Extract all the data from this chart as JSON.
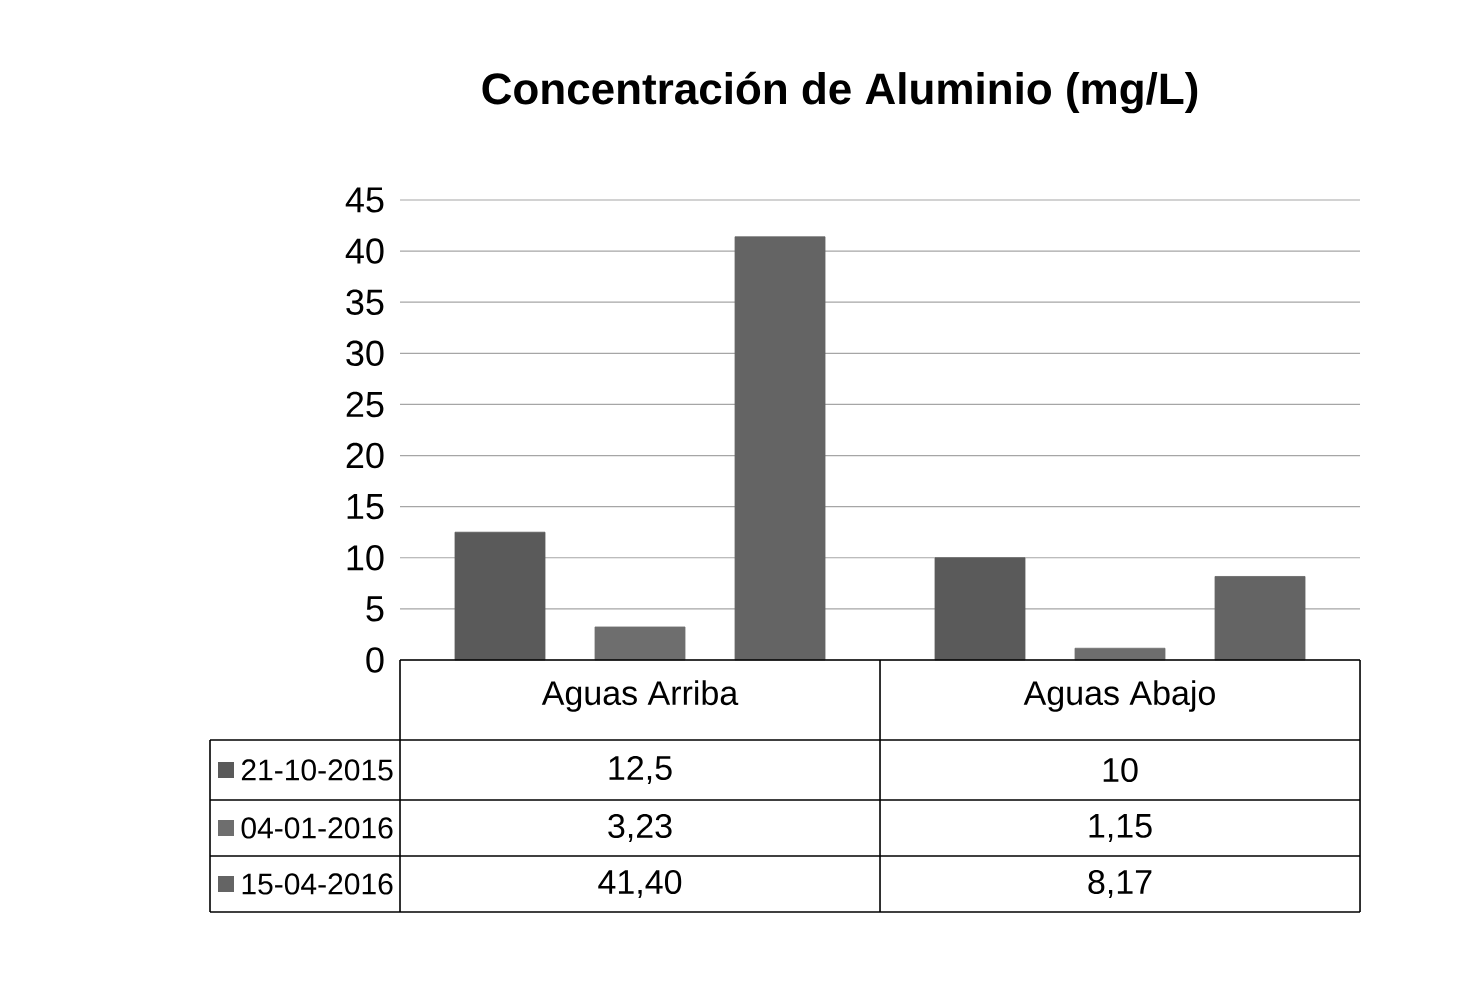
{
  "chart_data": {
    "type": "bar",
    "title": "Concentración de Aluminio (mg/L)",
    "categories": [
      "Aguas Arriba",
      "Aguas Abajo"
    ],
    "series": [
      {
        "name": "21-10-2015",
        "color": "#5a5a5a",
        "values": [
          12.5,
          10
        ],
        "value_labels": [
          "12,5",
          "10"
        ]
      },
      {
        "name": "04-01-2016",
        "color": "#6e6e6e",
        "values": [
          3.23,
          1.15
        ],
        "value_labels": [
          "3,23",
          "1,15"
        ]
      },
      {
        "name": "15-04-2016",
        "color": "#646464",
        "values": [
          41.4,
          8.17
        ],
        "value_labels": [
          "41,40",
          "8,17"
        ]
      }
    ],
    "ylim": [
      0,
      45
    ],
    "yticks": [
      0,
      5,
      10,
      15,
      20,
      25,
      30,
      35,
      40,
      45
    ],
    "grid": "y",
    "legend": "bottom"
  }
}
